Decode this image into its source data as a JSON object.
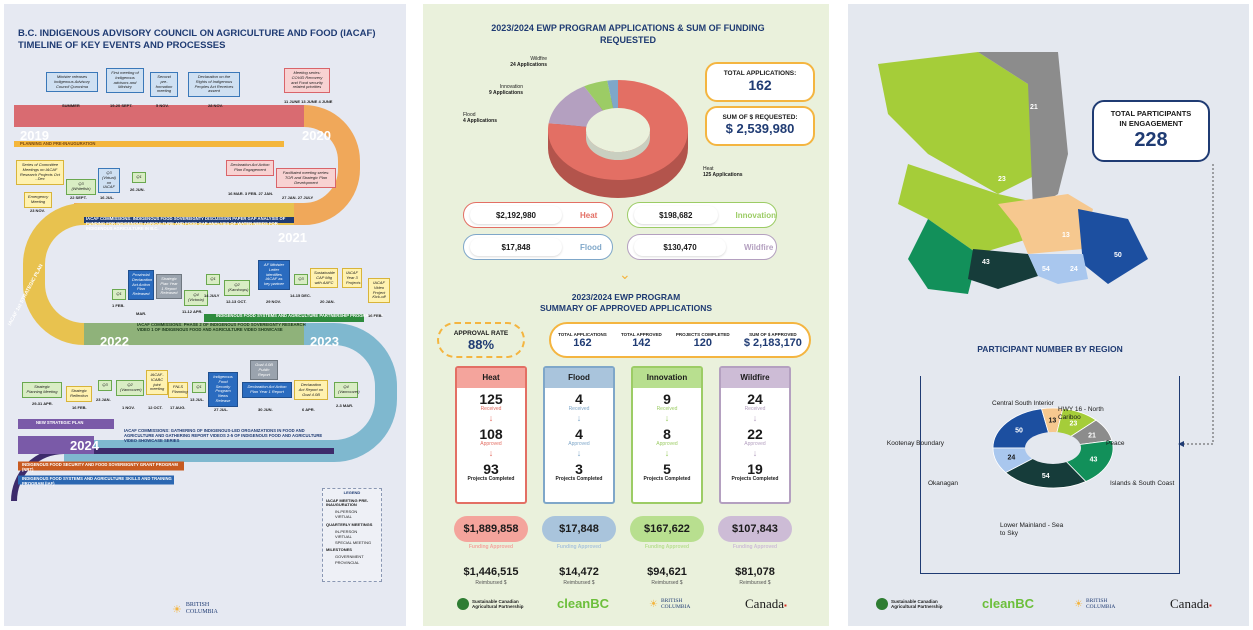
{
  "panel1": {
    "title_line1": "B.C. INDIGENOUS ADVISORY COUNCIL ON AGRICULTURE AND FOOD (IACAF)",
    "title_line2": "TIMELINE OF KEY EVENTS AND PROCESSES",
    "years": [
      "2019",
      "2020",
      "2021",
      "2022",
      "2023",
      "2024"
    ],
    "planning_label": "PLANNING AND PRE-INAUGURATION",
    "strategic_plan_label": "IACAF 1st STRATEGIC PLAN",
    "new_strategic_plan_label": "NEW STRATEGIC PLAN",
    "notes_2019": [
      {
        "text": "Minister releases Indigenous Advisory Council Quronima",
        "date": "SUMMER"
      },
      {
        "text": "First meeting of Indigenous advisors and Ministry",
        "date": "19-20 SEPT."
      },
      {
        "text": "Second pre-formation meeting",
        "date": "5 NOV."
      },
      {
        "text": "Declaration on the Rights of Indigenous Peoples Act Receives assent",
        "date": "28 NOV."
      },
      {
        "text": "Meeting series: COVID Recovery and Food security related priorities",
        "date": "11 JUNE  13 JUNE  4 JUNE"
      }
    ],
    "notes_2020": [
      {
        "text": "Series of Committee Meetings on IACAF Research Projects Oct - Dec",
        "date": ""
      },
      {
        "text": "Emergency Meeting",
        "date": "23 NOV."
      },
      {
        "text": "Q3 (Whitefish)",
        "date": "22 SEPT."
      },
      {
        "text": "Q3 (Virtual) on IACAF",
        "date": "16 JUL."
      },
      {
        "text": "Q1",
        "date": "26 JUN."
      },
      {
        "text": "Declaration Act Action Plan Engagement",
        "date": "16 MAR.  3 FEB.  27 JAN."
      },
      {
        "text": "Facilitated meeting series: TOR and Strategic Plan Development",
        "date": "27 JAN.  27 JULY"
      }
    ],
    "band_2021": "IACAF COMMISSIONS: INDIGENOUS FOOD SOVEREIGNTY DISCUSSION PAPER GAP ANALYSIS OF FUNDING FOR INDIGENOUS AGRICULTURE AND FOOD GAP ANALYSIS OF WATER NEEDS FOR INDIGENOUS AGRICULTURE IN B.C.",
    "notes_2022": [
      {
        "text": "Q1",
        "date": "1 FEB."
      },
      {
        "text": "Provincial Declaration Act Action Plan Released",
        "date": "MAR."
      },
      {
        "text": "Strategic Plan Year 1 Report Released",
        "date": ""
      },
      {
        "text": "Q4 (Victoria)",
        "date": "11-12 APR."
      },
      {
        "text": "Q1",
        "date": "14 JULY"
      },
      {
        "text": "Q2 (Kamloops)",
        "date": "12-13 OCT."
      },
      {
        "text": "AF Minister Letter identifies IACAF as key partner",
        "date": "29 NOV."
      },
      {
        "text": "Q3",
        "date": "14-15 DEC."
      },
      {
        "text": "Sustainable CAP Mtg with AAFC",
        "date": "20 JAN."
      },
      {
        "text": "IACAF Year 3 Projects",
        "date": ""
      },
      {
        "text": "IACAF Video Project Kick-off",
        "date": "16 FEB."
      }
    ],
    "band_ifsapp": "INDIGENOUS FOOD SYSTEMS AND AGRICULTURE PARTNERSHIP PROGRAM (IAF)",
    "band_2022": "IACAF COMMISSIONS: PHASE 2 OF INDIGENOUS FOOD SOVEREIGNTY RESEARCH VIDEO 1 OF INDIGENOUS FOOD AND AGRICULTURE VIDEO SHOWCASE",
    "notes_2023": [
      {
        "text": "Strategic Planning Meeting",
        "date": "29-31 APR."
      },
      {
        "text": "Strategic Reflection",
        "date": "16 FEB."
      },
      {
        "text": "Q3",
        "date": "23 JAN."
      },
      {
        "text": "Q2 (Vancouver)",
        "date": "1 NOV."
      },
      {
        "text": "IACAF-ICABC joint meeting",
        "date": "12 OCT."
      },
      {
        "text": "FNLS Planning",
        "date": "17 AUG."
      },
      {
        "text": "Q1",
        "date": "13 JUL."
      },
      {
        "text": "Indigenous Food Security Program News Release",
        "date": "27 JUL."
      },
      {
        "text": "Goal 4.0B Public Report",
        "date": ""
      },
      {
        "text": "Declaration Act Action Plan Year 1 Report",
        "date": "30 JUN."
      },
      {
        "text": "Declaration Act Report on Goal 4.0B",
        "date": "6 APR."
      },
      {
        "text": "Q4 (Vancouver)",
        "date": "2-3 MAR."
      }
    ],
    "band_2024": "IACAF COMMISSIONS: GATHERING OF INDIGENOUS-LED ORGANIZATIONS IN FOOD AND AGRICULTURE AND GATHERING REPORT VIDEOS 2-5 OF INDIGENOUS FOOD AND AGRICULTURE VIDEO SHOWCASE SERIES",
    "band_grant": "INDIGENOUS FOOD SECURITY AND FOOD SOVEREIGNTY GRANT PROGRAM (NRT)",
    "band_skills": "INDIGENOUS FOOD SYSTEMS AND AGRICULTURE SKILLS AND TRAINING PROGRAM (IAF)",
    "legend": {
      "title": "LEGEND",
      "group1": "IACAF MEETING PRE-INAUGURATION",
      "items1": [
        "IN-PERSON",
        "VIRTUAL"
      ],
      "group2": "QUARTERLY MEETINGS",
      "items2": [
        "IN-PERSON",
        "VIRTUAL",
        "SPECIAL MEETING"
      ],
      "group3": "MILESTONES",
      "items3": [
        "GOVERNMENT",
        "PROVINCIAL"
      ]
    },
    "logo": "BRITISH COLUMBIA"
  },
  "panel2": {
    "title": "2023/2024 EWP PROGRAM APPLICATIONS & SUM OF FUNDING REQUESTED",
    "donut": [
      {
        "name": "Wildfire",
        "count": "24 Applications",
        "color": "#b4a0c0"
      },
      {
        "name": "Innovation",
        "count": "9 Applications",
        "color": "#9ccc65"
      },
      {
        "name": "Flood",
        "count": "4 Applications",
        "color": "#7fa7c9"
      },
      {
        "name": "Heat",
        "count": "125 Applications",
        "color": "#e36f64"
      }
    ],
    "total_apps_label": "TOTAL APPLICATIONS:",
    "total_apps": "162",
    "sum_label": "SUM OF $ REQUESTED:",
    "sum_value": "$ 2,539,980",
    "requested": [
      {
        "amount": "$2,192,980",
        "name": "Heat",
        "color": "#e36f64"
      },
      {
        "amount": "$198,682",
        "name": "Innovation",
        "color": "#9ccc65"
      },
      {
        "amount": "$17,848",
        "name": "Flood",
        "color": "#7fa7c9"
      },
      {
        "amount": "$130,470",
        "name": "Wildfire",
        "color": "#b4a0c0"
      }
    ],
    "summary_title_1": "2023/2024 EWP PROGRAM",
    "summary_title_2": "SUMMARY OF APPROVED APPLICATIONS",
    "approval_label": "APPROVAL RATE",
    "approval_rate": "88%",
    "stats": [
      {
        "label": "TOTAL APPLICATIONS",
        "value": "162"
      },
      {
        "label": "TOTAL APPROVED",
        "value": "142"
      },
      {
        "label": "PROJECTS COMPLETED",
        "value": "120"
      },
      {
        "label": "SUM OF $ APPROVED",
        "value": "$ 2,183,170"
      }
    ],
    "received_label": "Received",
    "approved_label": "Approved",
    "completed_label": "Projects Completed",
    "funding_label": "Funding Approved",
    "reimbursed_label": "Reimbursed $",
    "streams": [
      {
        "name": "Heat",
        "received": "125",
        "approved": "108",
        "completed": "93",
        "funding": "$1,889,858",
        "reimbursed": "$1,446,515",
        "color": "#e36f64",
        "light": "#f4a49c"
      },
      {
        "name": "Flood",
        "received": "4",
        "approved": "4",
        "completed": "3",
        "funding": "$17,848",
        "reimbursed": "$14,472",
        "color": "#7fa7c9",
        "light": "#a9c4dc"
      },
      {
        "name": "Innovation",
        "received": "9",
        "approved": "8",
        "completed": "5",
        "funding": "$167,622",
        "reimbursed": "$94,621",
        "color": "#9ccc65",
        "light": "#b8df8f"
      },
      {
        "name": "Wildfire",
        "received": "24",
        "approved": "22",
        "completed": "19",
        "funding": "$107,843",
        "reimbursed": "$81,078",
        "color": "#b4a0c0",
        "light": "#cdbcd6"
      }
    ],
    "logos": [
      "Sustainable Canadian Agricultural Partnership",
      "cleanBC",
      "BRITISH COLUMBIA",
      "Canada"
    ]
  },
  "panel3": {
    "total_label_1": "TOTAL PARTICIPANTS",
    "total_label_2": "IN ENGAGEMENT",
    "total_value": "228",
    "map_values": [
      "21",
      "23",
      "13",
      "43",
      "54",
      "24",
      "50"
    ],
    "region_title": "PARTICIPANT NUMBER BY REGION",
    "regions": [
      {
        "name": "Kootenay Boundary",
        "value": 50,
        "color": "#1c4fa0"
      },
      {
        "name": "Central South Interior",
        "value": 13,
        "color": "#f6c88f"
      },
      {
        "name": "HWY 16 - North Cariboo",
        "value": 23,
        "color": "#a5cd39"
      },
      {
        "name": "Peace",
        "value": 21,
        "color": "#8c8c8c"
      },
      {
        "name": "Islands & South Coast",
        "value": 43,
        "color": "#12905a"
      },
      {
        "name": "Lower Mainland - Sea to Sky",
        "value": 54,
        "color": "#163c3a"
      },
      {
        "name": "Okanagan",
        "value": 24,
        "color": "#a9c7ee"
      }
    ],
    "logos": [
      "Sustainable Canadian Agricultural Partnership",
      "cleanBC",
      "BRITISH COLUMBIA",
      "Canada"
    ]
  }
}
